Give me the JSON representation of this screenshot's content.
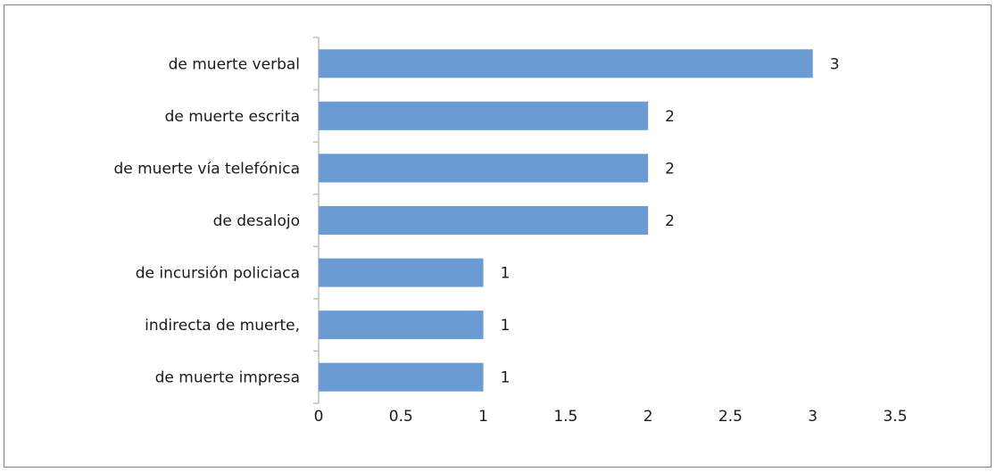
{
  "chart_data": {
    "type": "bar",
    "orientation": "horizontal",
    "categories": [
      "de muerte verbal",
      "de muerte escrita",
      "de muerte vía telefónica",
      "de desalojo ",
      "de incursión policiaca",
      "indirecta de muerte,",
      "de muerte impresa"
    ],
    "values": [
      3,
      2,
      2,
      2,
      1,
      1,
      1
    ],
    "data_labels": [
      "3",
      "2",
      "2",
      "2",
      "1",
      "1",
      "1"
    ],
    "xlim": [
      0,
      3.5
    ],
    "x_ticks": [
      0,
      0.5,
      1,
      1.5,
      2,
      2.5,
      3,
      3.5
    ],
    "x_tick_labels": [
      "0",
      "0.5",
      "1",
      "1.5",
      "2",
      "2.5",
      "3",
      "3.5"
    ],
    "title": "",
    "xlabel": "",
    "ylabel": "",
    "grid": false,
    "legend": "none",
    "bar_color": "#6a9bd2",
    "axis_color": "#bfbfbf"
  }
}
